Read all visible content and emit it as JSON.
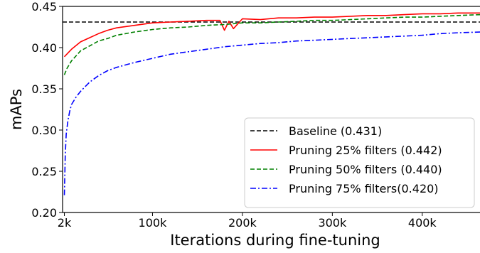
{
  "chart_data": {
    "type": "line",
    "title": "",
    "xlabel": "Iterations during fine-tuning",
    "ylabel": "mAPs",
    "xlim": [
      0,
      465000
    ],
    "ylim": [
      0.2,
      0.45
    ],
    "x_ticks": [
      {
        "value": 2000,
        "label": "2k"
      },
      {
        "value": 100000,
        "label": "100k"
      },
      {
        "value": 200000,
        "label": "200k"
      },
      {
        "value": 300000,
        "label": "300k"
      },
      {
        "value": 400000,
        "label": "400k"
      }
    ],
    "y_ticks": [
      {
        "value": 0.2,
        "label": "0.20"
      },
      {
        "value": 0.25,
        "label": "0.25"
      },
      {
        "value": 0.3,
        "label": "0.30"
      },
      {
        "value": 0.35,
        "label": "0.35"
      },
      {
        "value": 0.4,
        "label": "0.40"
      },
      {
        "value": 0.45,
        "label": "0.45"
      }
    ],
    "grid": false,
    "legend_position": "bottom-right",
    "series": [
      {
        "name": "Baseline (0.431)",
        "color": "#000000",
        "style": "dashed",
        "x": [
          0,
          465000
        ],
        "y": [
          0.431,
          0.431
        ]
      },
      {
        "name": "Pruning 25% filters (0.442)",
        "color": "#ff0000",
        "style": "solid",
        "x": [
          2000,
          10000,
          20000,
          30000,
          40000,
          50000,
          60000,
          80000,
          100000,
          120000,
          140000,
          160000,
          175000,
          180000,
          185000,
          190000,
          200000,
          220000,
          240000,
          260000,
          280000,
          300000,
          320000,
          340000,
          360000,
          380000,
          400000,
          420000,
          440000,
          465000
        ],
        "y": [
          0.389,
          0.398,
          0.407,
          0.412,
          0.417,
          0.421,
          0.424,
          0.427,
          0.43,
          0.431,
          0.432,
          0.433,
          0.433,
          0.421,
          0.432,
          0.423,
          0.435,
          0.434,
          0.436,
          0.436,
          0.437,
          0.437,
          0.438,
          0.439,
          0.439,
          0.44,
          0.441,
          0.441,
          0.442,
          0.442
        ]
      },
      {
        "name": "Pruning 50% filters (0.440)",
        "color": "#008000",
        "style": "dashed",
        "x": [
          2000,
          5000,
          10000,
          20000,
          30000,
          40000,
          50000,
          60000,
          80000,
          100000,
          120000,
          140000,
          160000,
          180000,
          200000,
          220000,
          240000,
          260000,
          280000,
          300000,
          320000,
          340000,
          360000,
          380000,
          400000,
          420000,
          440000,
          465000
        ],
        "y": [
          0.367,
          0.375,
          0.384,
          0.396,
          0.402,
          0.408,
          0.411,
          0.415,
          0.419,
          0.422,
          0.424,
          0.425,
          0.427,
          0.428,
          0.43,
          0.43,
          0.431,
          0.432,
          0.433,
          0.433,
          0.434,
          0.435,
          0.436,
          0.437,
          0.437,
          0.438,
          0.439,
          0.44
        ]
      },
      {
        "name": "Pruning 75% filters(0.420)",
        "color": "#0000ff",
        "style": "dashdot",
        "x": [
          2000,
          3000,
          4000,
          6000,
          8000,
          10000,
          15000,
          20000,
          30000,
          40000,
          50000,
          60000,
          80000,
          100000,
          120000,
          140000,
          160000,
          180000,
          200000,
          220000,
          240000,
          260000,
          280000,
          300000,
          320000,
          340000,
          360000,
          380000,
          400000,
          420000,
          440000,
          465000
        ],
        "y": [
          0.221,
          0.27,
          0.295,
          0.312,
          0.323,
          0.331,
          0.34,
          0.347,
          0.358,
          0.366,
          0.372,
          0.376,
          0.382,
          0.387,
          0.392,
          0.395,
          0.398,
          0.401,
          0.403,
          0.405,
          0.406,
          0.408,
          0.409,
          0.41,
          0.411,
          0.412,
          0.413,
          0.414,
          0.415,
          0.417,
          0.418,
          0.419
        ]
      }
    ]
  }
}
